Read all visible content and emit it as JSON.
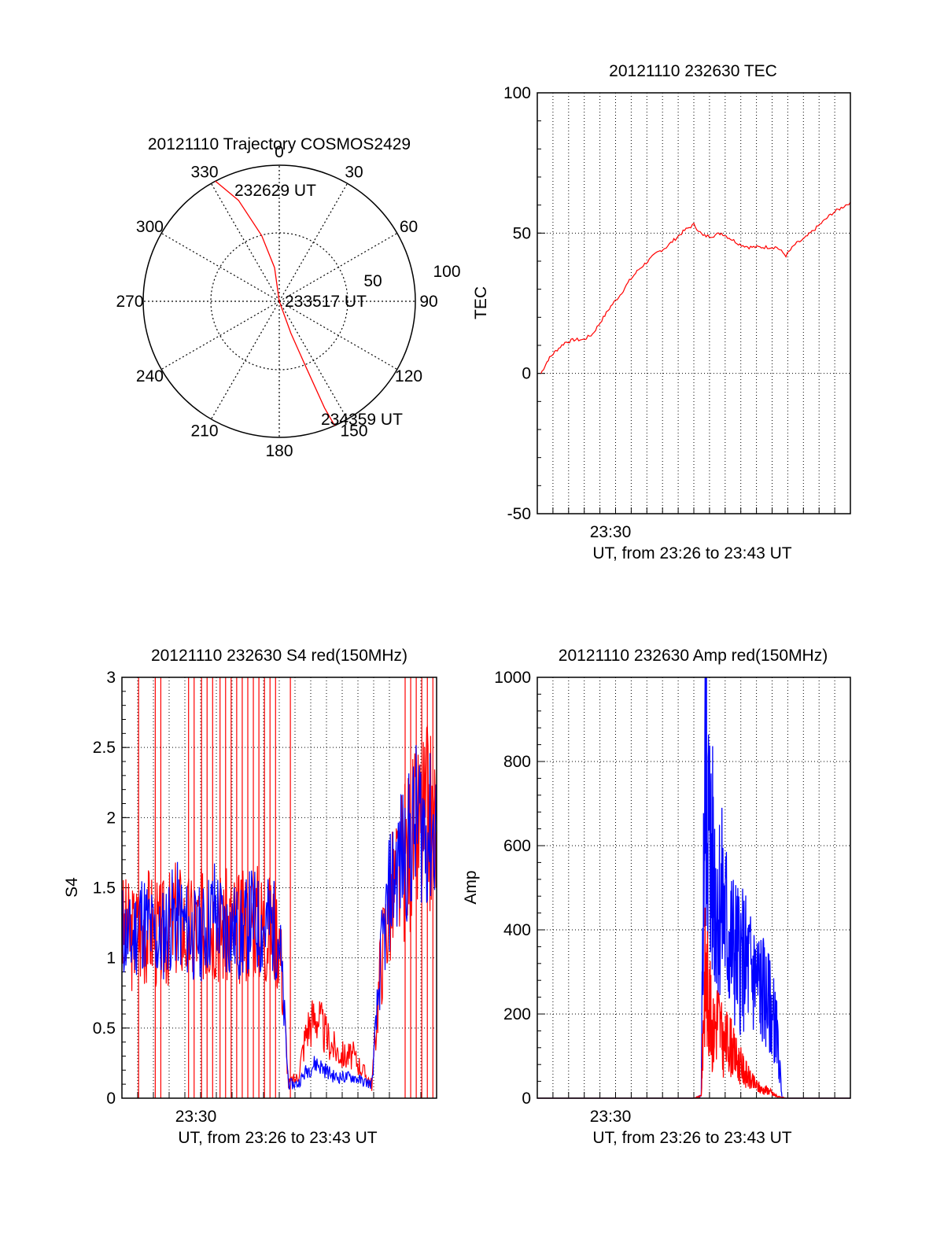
{
  "colors": {
    "red": "#ff0000",
    "blue": "#0000ff",
    "axis": "#000000",
    "grid": "#000000"
  },
  "chart_data": [
    {
      "type": "scatter",
      "kind": "polar",
      "title": "20121110 Trajectory COSMOS2429",
      "azimuth_labels": [
        "0",
        "30",
        "60",
        "90",
        "120",
        "150",
        "180",
        "210",
        "240",
        "270",
        "300",
        "330"
      ],
      "radial_labels": [
        "50",
        "100"
      ],
      "series": [
        {
          "color": "#ff0000",
          "points": [
            [
              -28,
              100
            ],
            [
              -22,
              80
            ],
            [
              -15,
              50
            ],
            [
              -8,
              25
            ],
            [
              0,
              0
            ],
            [
              160,
              25
            ],
            [
              158,
              50
            ],
            [
              157,
              85
            ],
            [
              156,
              100
            ]
          ]
        }
      ],
      "annotations": [
        "232629 UT",
        "233517 UT",
        "234359 UT"
      ]
    },
    {
      "type": "line",
      "title": "20121110 232630 TEC",
      "ylabel": "TEC",
      "xlabel": "UT, from 23:26 to 23:43 UT",
      "xtick_labels": [
        "23:30"
      ],
      "ytick_labels": [
        "100",
        "50",
        "0",
        "-50"
      ],
      "xlim": [
        0,
        17
      ],
      "ylim": [
        -50,
        100
      ],
      "grid": true,
      "series": [
        {
          "color": "#ff0000",
          "x": [
            0.2,
            0.6,
            1.0,
            1.5,
            2.0,
            2.5,
            3.0,
            3.5,
            4.0,
            4.5,
            5.0,
            5.5,
            6.0,
            6.5,
            7.0,
            7.5,
            8.0,
            8.5,
            9.0,
            9.5,
            10.0,
            10.5,
            11.0,
            11.5,
            12.0,
            12.5,
            13.0,
            13.5,
            14.0,
            14.5,
            15.0,
            15.5,
            16.0,
            16.5,
            17.0
          ],
          "y": [
            0,
            5,
            8,
            11,
            12,
            12,
            14,
            19,
            24,
            28,
            33,
            37,
            40,
            43,
            45,
            48,
            51,
            53,
            49,
            49,
            50,
            48,
            46,
            45,
            45,
            45,
            45,
            42,
            46,
            48,
            51,
            54,
            57,
            59,
            61
          ]
        }
      ]
    },
    {
      "type": "line",
      "title": "20121110 232630 S4 red(150MHz)",
      "ylabel": "S4",
      "xlabel": "UT, from 23:26 to 23:43 UT",
      "xtick_labels": [
        "23:30"
      ],
      "ytick_labels": [
        "3",
        "2.5",
        "2",
        "1.5",
        "1",
        "0.5",
        "0"
      ],
      "xlim": [
        0,
        17
      ],
      "ylim": [
        0,
        3
      ],
      "grid": true,
      "series": [
        {
          "color": "#ff0000",
          "x": [
            0,
            0.5,
            1.0,
            1.5,
            2.0,
            2.5,
            3.0,
            3.5,
            4.0,
            4.5,
            5.0,
            5.5,
            6.0,
            6.5,
            7.0,
            7.5,
            8.0,
            8.5,
            9.0,
            9.5,
            10.0,
            10.5,
            11.0,
            11.5,
            12.0,
            12.5,
            13.0,
            13.5,
            14.0,
            14.5,
            15.0,
            15.5,
            16.0,
            16.5,
            17.0
          ],
          "y": [
            1.2,
            1.15,
            1.2,
            1.25,
            1.15,
            1.2,
            1.3,
            1.2,
            1.2,
            1.25,
            1.3,
            1.2,
            1.25,
            1.2,
            1.3,
            1.25,
            1.2,
            1.2,
            0.1,
            0.15,
            0.5,
            0.6,
            0.45,
            0.35,
            0.3,
            0.3,
            0.2,
            0.1,
            1.0,
            1.4,
            1.6,
            1.8,
            1.9,
            2.0,
            1.9
          ]
        },
        {
          "color": "#0000ff",
          "x": [
            0,
            0.5,
            1.0,
            1.5,
            2.0,
            2.5,
            3.0,
            3.5,
            4.0,
            4.5,
            5.0,
            5.5,
            6.0,
            6.5,
            7.0,
            7.5,
            8.0,
            8.5,
            9.0,
            9.5,
            10.0,
            10.5,
            11.0,
            11.5,
            12.0,
            12.5,
            13.0,
            13.5,
            14.0,
            14.5,
            15.0,
            15.5,
            16.0,
            16.5,
            17.0
          ],
          "y": [
            1.2,
            1.1,
            1.3,
            1.2,
            1.1,
            1.25,
            1.3,
            1.2,
            1.15,
            1.2,
            1.35,
            1.2,
            1.2,
            1.15,
            1.3,
            1.2,
            1.25,
            1.15,
            0.1,
            0.1,
            0.2,
            0.25,
            0.2,
            0.15,
            0.15,
            0.15,
            0.12,
            0.1,
            1.0,
            1.5,
            1.7,
            1.8,
            2.0,
            1.9,
            1.9
          ]
        }
      ],
      "spike_x": [
        0.9,
        1.8,
        2.1,
        3.6,
        3.9,
        4.3,
        4.6,
        4.9,
        5.3,
        5.6,
        5.9,
        6.2,
        6.5,
        6.8,
        7.1,
        7.4,
        7.7,
        8.0,
        8.3,
        9.1,
        15.3,
        15.6,
        15.9,
        16.2,
        16.5,
        16.8
      ]
    },
    {
      "type": "line",
      "title": "20121110 232630 Amp red(150MHz)",
      "ylabel": "Amp",
      "xlabel": "UT, from 23:26 to 23:43 UT",
      "xtick_labels": [
        "23:30"
      ],
      "ytick_labels": [
        "1000",
        "800",
        "600",
        "400",
        "200",
        "0"
      ],
      "xlim": [
        0,
        17
      ],
      "ylim": [
        0,
        1000
      ],
      "grid": true,
      "series": [
        {
          "color": "#ff0000",
          "x": [
            0,
            8.5,
            8.9,
            9.1,
            9.3,
            9.5,
            9.8,
            10.1,
            10.4,
            10.7,
            11.0,
            11.3,
            11.6,
            11.9,
            12.2,
            12.5,
            12.8,
            13.0,
            13.5,
            17.0
          ],
          "y": [
            0,
            0,
            5,
            300,
            250,
            150,
            200,
            120,
            140,
            100,
            80,
            60,
            40,
            30,
            20,
            20,
            10,
            5,
            0,
            0
          ]
        },
        {
          "color": "#0000ff",
          "x": [
            0,
            8.5,
            8.9,
            9.1,
            9.3,
            9.5,
            9.8,
            10.1,
            10.4,
            10.7,
            11.0,
            11.3,
            11.6,
            11.9,
            12.2,
            12.5,
            12.8,
            13.0,
            13.3,
            13.6,
            17.0
          ],
          "y": [
            0,
            0,
            5,
            800,
            650,
            550,
            470,
            450,
            380,
            350,
            330,
            320,
            300,
            280,
            260,
            230,
            200,
            150,
            0,
            0,
            0
          ]
        }
      ]
    }
  ]
}
